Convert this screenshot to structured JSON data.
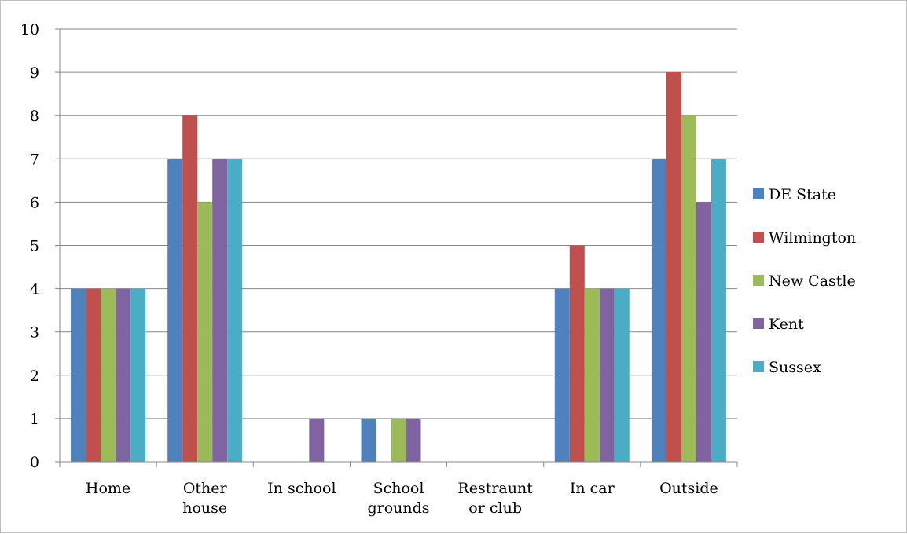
{
  "chart_data": {
    "type": "bar",
    "categories": [
      [
        "Home"
      ],
      [
        "Other",
        "house"
      ],
      [
        "In school"
      ],
      [
        "School",
        "grounds"
      ],
      [
        "Restraunt",
        "or club"
      ],
      [
        "In car"
      ],
      [
        "Outside"
      ]
    ],
    "series": [
      {
        "name": "DE State",
        "color": "#4f81bd",
        "values": [
          4,
          7,
          0,
          1,
          0,
          4,
          7
        ]
      },
      {
        "name": "Wilmington",
        "color": "#c0504d",
        "values": [
          4,
          8,
          0,
          0,
          0,
          5,
          9
        ]
      },
      {
        "name": "New Castle",
        "color": "#9bbb59",
        "values": [
          4,
          6,
          0,
          1,
          0,
          4,
          8
        ]
      },
      {
        "name": "Kent",
        "color": "#8064a2",
        "values": [
          4,
          7,
          1,
          1,
          0,
          4,
          6
        ]
      },
      {
        "name": "Sussex",
        "color": "#4bacc6",
        "values": [
          4,
          7,
          0,
          0,
          0,
          4,
          7
        ]
      }
    ],
    "ylim": [
      0,
      10
    ],
    "yticks": [
      "0",
      "1",
      "2",
      "3",
      "4",
      "5",
      "6",
      "7",
      "8",
      "9",
      "10"
    ],
    "grid": true,
    "legend_position": "right"
  }
}
